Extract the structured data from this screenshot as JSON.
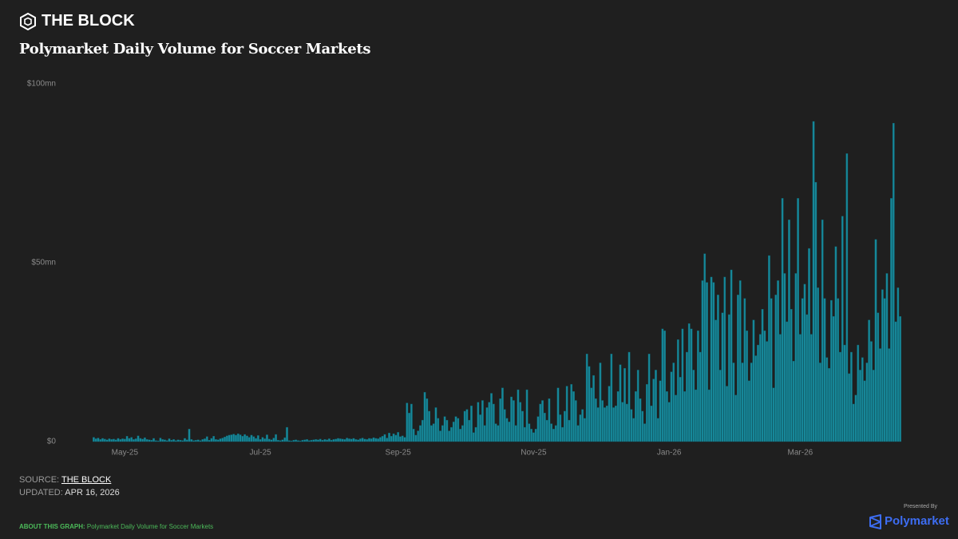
{
  "header": {
    "brand": "THE BLOCK"
  },
  "chart_data": {
    "type": "bar",
    "title": "Polymarket Daily Volume for Soccer Markets",
    "color": "#17899b",
    "grid": false,
    "ylim": [
      0,
      100
    ],
    "yticks": [
      {
        "value": 0,
        "label": "$0"
      },
      {
        "value": 50,
        "label": "$50mn"
      },
      {
        "value": 100,
        "label": "$100mn"
      }
    ],
    "categories": [
      null,
      null,
      null,
      null,
      null,
      null,
      null,
      null,
      null,
      null,
      null,
      null,
      null,
      null,
      "May-25",
      null,
      null,
      null,
      null,
      null,
      null,
      null,
      null,
      null,
      null,
      null,
      null,
      null,
      null,
      null,
      null,
      null,
      null,
      null,
      null,
      null,
      null,
      null,
      null,
      null,
      null,
      null,
      null,
      null,
      null,
      null,
      null,
      null,
      null,
      null,
      null,
      null,
      null,
      null,
      null,
      null,
      null,
      null,
      null,
      null,
      null,
      null,
      null,
      null,
      null,
      null,
      null,
      null,
      null,
      null,
      null,
      null,
      null,
      null,
      null,
      "Jul-25",
      null,
      null,
      null,
      null,
      null,
      null,
      null,
      null,
      null,
      null,
      null,
      null,
      null,
      null,
      null,
      null,
      null,
      null,
      null,
      null,
      null,
      null,
      null,
      null,
      null,
      null,
      null,
      null,
      null,
      null,
      null,
      null,
      null,
      null,
      null,
      null,
      null,
      null,
      null,
      null,
      null,
      null,
      null,
      null,
      null,
      null,
      null,
      null,
      null,
      null,
      null,
      null,
      null,
      null,
      null,
      null,
      null,
      null,
      null,
      null,
      null,
      "Sep-25",
      null,
      null,
      null,
      null,
      null,
      null,
      null,
      null,
      null,
      null,
      null,
      null,
      null,
      null,
      null,
      null,
      null,
      null,
      null,
      null,
      null,
      null,
      null,
      null,
      null,
      null,
      null,
      null,
      null,
      null,
      null,
      null,
      null,
      null,
      null,
      null,
      null,
      null,
      null,
      null,
      null,
      null,
      null,
      null,
      null,
      null,
      null,
      null,
      null,
      null,
      null,
      null,
      null,
      null,
      null,
      null,
      null,
      null,
      null,
      null,
      "Nov-25",
      null,
      null,
      null,
      null,
      null,
      null,
      null,
      null,
      null,
      null,
      null,
      null,
      null,
      null,
      null,
      null,
      null,
      null,
      null,
      null,
      null,
      null,
      null,
      null,
      null,
      null,
      null,
      null,
      null,
      null,
      null,
      null,
      null,
      null,
      null,
      null,
      null,
      null,
      null,
      null,
      null,
      null,
      null,
      null,
      null,
      null,
      null,
      null,
      null,
      null,
      null,
      null,
      null,
      null,
      null,
      null,
      null,
      null,
      null,
      null,
      "Jan-26",
      null,
      null,
      null,
      null,
      null,
      null,
      null,
      null,
      null,
      null,
      null,
      null,
      null,
      null,
      null,
      null,
      null,
      null,
      null,
      null,
      null,
      null,
      null,
      null,
      null,
      null,
      null,
      null,
      null,
      null,
      null,
      null,
      null,
      null,
      null,
      null,
      null,
      null,
      null,
      null,
      null,
      null,
      null,
      null,
      null,
      null,
      null,
      null,
      null,
      null,
      null,
      null,
      null,
      null,
      null,
      null,
      null,
      null,
      "Mar-26",
      null,
      null,
      null,
      null,
      null,
      null,
      null,
      null,
      null,
      null,
      null,
      null,
      null,
      null,
      null,
      null,
      null,
      null,
      null,
      null,
      null,
      null,
      null,
      null,
      null,
      null,
      null,
      null,
      null,
      null,
      null,
      null,
      null,
      null,
      null,
      null,
      null,
      null,
      null,
      null,
      null,
      null,
      null,
      null,
      null
    ],
    "values": [
      1.2,
      0.8,
      1.0,
      0.6,
      0.9,
      0.7,
      0.5,
      0.8,
      0.6,
      0.7,
      0.5,
      0.9,
      0.6,
      0.8,
      0.7,
      1.5,
      0.9,
      1.2,
      0.6,
      0.8,
      1.6,
      0.9,
      0.7,
      1.1,
      0.6,
      0.5,
      0.4,
      0.9,
      0.3,
      0.2,
      1.0,
      0.6,
      0.5,
      0.3,
      0.8,
      0.4,
      0.6,
      0.3,
      0.5,
      0.4,
      0.3,
      0.9,
      0.5,
      3.5,
      0.6,
      0.3,
      0.4,
      0.5,
      0.3,
      0.6,
      0.8,
      1.4,
      0.4,
      0.9,
      1.5,
      0.6,
      0.5,
      0.8,
      1.0,
      1.3,
      1.6,
      1.8,
      1.9,
      2.1,
      1.8,
      2.2,
      1.9,
      1.5,
      2.0,
      1.6,
      1.2,
      1.8,
      1.4,
      0.9,
      1.7,
      0.6,
      1.2,
      0.8,
      1.9,
      0.7,
      0.5,
      1.0,
      2.0,
      0.4,
      0.3,
      0.5,
      1.1,
      4.0,
      0.3,
      0.2,
      0.4,
      0.5,
      0.3,
      0.2,
      0.4,
      0.5,
      0.6,
      0.3,
      0.4,
      0.5,
      0.6,
      0.5,
      0.7,
      0.4,
      0.6,
      0.5,
      0.8,
      0.4,
      0.6,
      0.7,
      0.9,
      0.8,
      0.7,
      0.6,
      1.0,
      0.8,
      0.7,
      0.9,
      0.6,
      0.5,
      0.8,
      1.0,
      0.7,
      0.6,
      0.9,
      0.8,
      1.1,
      0.9,
      0.8,
      1.2,
      1.5,
      2.0,
      1.0,
      2.4,
      1.5,
      2.2,
      1.8,
      2.6,
      1.4,
      1.6,
      1.2,
      10.8,
      8.0,
      10.5,
      3.5,
      1.8,
      3.0,
      4.5,
      6.0,
      13.8,
      12.0,
      8.5,
      4.5,
      5.0,
      9.5,
      6.5,
      3.0,
      4.5,
      7.0,
      6.0,
      3.0,
      4.0,
      5.5,
      7.0,
      6.5,
      3.5,
      4.5,
      8.5,
      9.0,
      6.0,
      10.0,
      2.5,
      4.0,
      11.0,
      7.5,
      11.5,
      4.5,
      9.5,
      11.0,
      13.5,
      10.5,
      5.0,
      4.5,
      12.0,
      15.0,
      9.0,
      6.5,
      5.5,
      12.5,
      11.5,
      4.5,
      14.5,
      11.0,
      8.5,
      4.0,
      14.5,
      5.0,
      3.5,
      2.5,
      3.5,
      7.0,
      10.5,
      11.5,
      8.0,
      6.0,
      12.0,
      5.0,
      3.5,
      4.5,
      15.0,
      7.5,
      4.0,
      8.5,
      15.5,
      6.0,
      16.0,
      14.0,
      11.5,
      4.5,
      7.5,
      9.0,
      6.5,
      24.5,
      21.0,
      15.0,
      18.5,
      12.0,
      9.5,
      22.0,
      11.5,
      9.5,
      10.0,
      15.5,
      24.5,
      9.5,
      10.0,
      14.0,
      21.5,
      11.0,
      20.5,
      10.5,
      25.0,
      9.0,
      6.5,
      14.0,
      20.0,
      12.0,
      8.5,
      5.0,
      16.0,
      24.5,
      10.0,
      17.5,
      20.0,
      6.5,
      17.0,
      31.5,
      31.0,
      14.0,
      11.0,
      19.5,
      22.0,
      13.0,
      28.5,
      18.0,
      31.5,
      14.0,
      25.0,
      33.0,
      31.5,
      20.0,
      14.5,
      31.0,
      25.0,
      45.0,
      52.5,
      44.5,
      14.5,
      46.0,
      44.5,
      34.0,
      41.0,
      20.0,
      36.0,
      46.0,
      15.5,
      35.5,
      48.0,
      22.0,
      13.0,
      41.0,
      45.0,
      22.0,
      40.0,
      31.0,
      17.0,
      22.0,
      34.0,
      24.0,
      27.0,
      30.0,
      37.0,
      31.0,
      28.0,
      52.0,
      40.0,
      15.0,
      41.0,
      45.0,
      30.0,
      68.0,
      47.0,
      33.5,
      62.0,
      37.0,
      22.5,
      47.0,
      68.0,
      30.0,
      40.0,
      44.0,
      35.5,
      54.0,
      30.0,
      89.5,
      72.5,
      43.0,
      22.0,
      62.0,
      40.0,
      23.5,
      20.5,
      39.5,
      35.0,
      54.5,
      40.0,
      25.0,
      63.0,
      27.0,
      80.5,
      19.0,
      25.0,
      10.5,
      13.0,
      27.0,
      20.0,
      23.5,
      17.0,
      22.0,
      34.0,
      28.0,
      20.0,
      56.5,
      36.0,
      26.0,
      42.5,
      40.0,
      47.0,
      26.0,
      68.0,
      89.0,
      33.5,
      43.0,
      35.0
    ]
  },
  "footer": {
    "source_label": "SOURCE:",
    "source": "THE BLOCK",
    "updated_label": "UPDATED:",
    "updated": "APR 16, 2026",
    "about_label": "ABOUT THIS GRAPH:",
    "about": "Polymarket Daily Volume for Soccer Markets",
    "presented_by": "Presented By",
    "sponsor": "Polymarket"
  }
}
